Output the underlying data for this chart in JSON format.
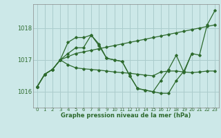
{
  "title": "Graphe pression niveau de la mer (hPa)",
  "bg_color": "#cce8e8",
  "grid_color": "#aacccc",
  "line_color": "#2d6a2d",
  "xlim": [
    -0.5,
    23.5
  ],
  "ylim": [
    1015.5,
    1018.75
  ],
  "yticks": [
    1016,
    1017,
    1018
  ],
  "xticks": [
    0,
    1,
    2,
    3,
    4,
    5,
    6,
    7,
    8,
    9,
    10,
    11,
    12,
    13,
    14,
    15,
    16,
    17,
    18,
    19,
    20,
    21,
    22,
    23
  ],
  "lines": [
    {
      "x": [
        0,
        1,
        2,
        3,
        4,
        5,
        6,
        7,
        8,
        9,
        10,
        11,
        12,
        13,
        14,
        15,
        16,
        17,
        18,
        19,
        20,
        21,
        22,
        23
      ],
      "y": [
        1016.15,
        1016.55,
        1016.7,
        1017.0,
        1017.55,
        1017.7,
        1017.7,
        1017.78,
        1017.45,
        1017.05,
        1017.0,
        1016.95,
        1016.5,
        1016.1,
        1016.05,
        1016.0,
        1016.35,
        1016.7,
        1017.15,
        1016.6,
        1017.2,
        1017.15,
        1018.1,
        1018.55
      ]
    },
    {
      "x": [
        0,
        1,
        2,
        3,
        4,
        5,
        6,
        7,
        8,
        9,
        10,
        11,
        12,
        13,
        14,
        15,
        16,
        17,
        18,
        19,
        20,
        21,
        22,
        23
      ],
      "y": [
        1016.15,
        1016.55,
        1016.7,
        1017.0,
        1017.1,
        1017.2,
        1017.25,
        1017.3,
        1017.35,
        1017.4,
        1017.45,
        1017.5,
        1017.55,
        1017.6,
        1017.65,
        1017.7,
        1017.75,
        1017.8,
        1017.85,
        1017.9,
        1017.95,
        1018.0,
        1018.05,
        1018.1
      ]
    },
    {
      "x": [
        0,
        1,
        2,
        3,
        4,
        5,
        6,
        7,
        8,
        9,
        10,
        11,
        12,
        13,
        14,
        15,
        16,
        17,
        18,
        19,
        20,
        21,
        22,
        23
      ],
      "y": [
        1016.15,
        1016.55,
        1016.7,
        1017.0,
        1016.85,
        1016.75,
        1016.72,
        1016.7,
        1016.68,
        1016.65,
        1016.62,
        1016.6,
        1016.58,
        1016.55,
        1016.52,
        1016.5,
        1016.62,
        1016.65,
        1016.65,
        1016.62,
        1016.6,
        1016.62,
        1016.65,
        1016.65
      ]
    },
    {
      "x": [
        0,
        1,
        2,
        3,
        4,
        5,
        6,
        7,
        8,
        9,
        10,
        11,
        12,
        13,
        14,
        15,
        16,
        17,
        18,
        19,
        20
      ],
      "y": [
        1016.15,
        1016.55,
        1016.7,
        1017.0,
        1017.2,
        1017.38,
        1017.38,
        1017.78,
        1017.5,
        1017.05,
        1017.0,
        1016.95,
        1016.5,
        1016.1,
        1016.05,
        1016.0,
        1015.95,
        1015.95,
        1016.35,
        1016.65,
        1017.2
      ]
    }
  ]
}
